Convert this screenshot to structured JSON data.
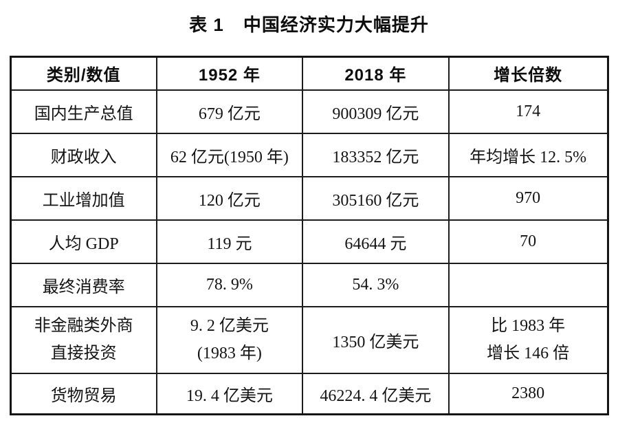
{
  "title": {
    "label": "表 1",
    "text": "中国经济实力大幅提升"
  },
  "table": {
    "headers": [
      "类别/数值",
      "1952 年",
      "2018 年",
      "增长倍数"
    ],
    "rows": [
      {
        "category": "国内生产总值",
        "y1952": "679 亿元",
        "y2018": "900309 亿元",
        "growth": "174"
      },
      {
        "category": "财政收入",
        "y1952": "62 亿元(1950 年)",
        "y2018": "183352 亿元",
        "growth": "年均增长 12. 5%"
      },
      {
        "category": "工业增加值",
        "y1952": "120 亿元",
        "y2018": "305160 亿元",
        "growth": "970"
      },
      {
        "category": "人均 GDP",
        "y1952": "119 元",
        "y2018": "64644 元",
        "growth": "70"
      },
      {
        "category": "最终消费率",
        "y1952": "78. 9%",
        "y2018": "54. 3%",
        "growth": ""
      },
      {
        "category_lines": [
          "非金融类外商",
          "直接投资"
        ],
        "y1952_lines": [
          "9. 2 亿美元",
          "(1983 年)"
        ],
        "y2018": "1350 亿美元",
        "growth_lines": [
          "比 1983 年",
          "增长 146 倍"
        ]
      },
      {
        "category": "货物贸易",
        "y1952": "19. 4 亿美元",
        "y2018": "46224. 4 亿美元",
        "growth": "2380"
      }
    ]
  }
}
